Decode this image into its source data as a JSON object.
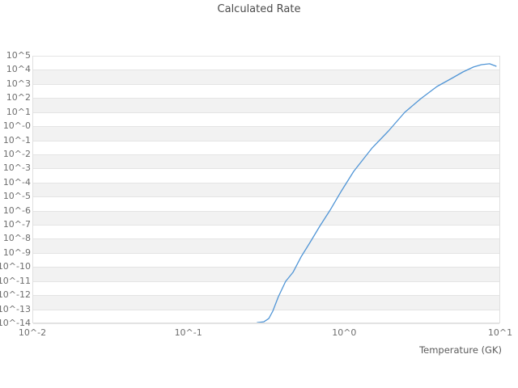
{
  "chart_data": {
    "type": "line",
    "title": "Calculated Rate",
    "xlabel": "Temperature (GK)",
    "ylabel": "",
    "x_axis": {
      "scale": "log",
      "min_exp": -2,
      "max_exp": 1,
      "tick_labels": [
        "10^-2",
        "10^-1",
        "10^0",
        "10^1"
      ],
      "tick_exps": [
        -2,
        -1,
        0,
        1
      ]
    },
    "y_axis": {
      "scale": "log",
      "min_exp": -14,
      "max_exp": 5,
      "tick_labels": [
        "10^5",
        "10^4",
        "10^3",
        "10^2",
        "10^1",
        "10^-0",
        "10^-1",
        "10^-2",
        "10^-3",
        "10^-4",
        "10^-5",
        "10^-6",
        "10^-7",
        "10^-8",
        "10^-9",
        "10^-10",
        "10^-11",
        "10^-12",
        "10^-13",
        "10^-14"
      ],
      "tick_exps": [
        5,
        4,
        3,
        2,
        1,
        0,
        -1,
        -2,
        -3,
        -4,
        -5,
        -6,
        -7,
        -8,
        -9,
        -10,
        -11,
        -12,
        -13,
        -14
      ]
    },
    "grid": {
      "bands": "alternating horizontal decade bands, white first from top",
      "band_color": "#f2f2f2",
      "line_color": "#e4e4e4",
      "border_color": "#e0e0e0"
    },
    "legend": "none",
    "series": [
      {
        "name": "calculated-rate",
        "color": "#5095d6",
        "line_width": 1.3,
        "x_temperature_gk": [
          0.277,
          0.305,
          0.328,
          0.348,
          0.378,
          0.421,
          0.469,
          0.528,
          0.603,
          0.696,
          0.812,
          0.96,
          1.149,
          1.512,
          1.921,
          2.44,
          3.1,
          3.93,
          4.88,
          5.77,
          6.74,
          7.59,
          8.55,
          9.41
        ],
        "y_log10_rate": [
          -14.0,
          -13.89,
          -13.66,
          -13.14,
          -12.11,
          -11.02,
          -10.38,
          -9.29,
          -8.26,
          -7.11,
          -5.96,
          -4.59,
          -3.21,
          -1.54,
          -0.34,
          0.98,
          1.96,
          2.82,
          3.39,
          3.85,
          4.2,
          4.37,
          4.43,
          4.26
        ]
      }
    ]
  }
}
